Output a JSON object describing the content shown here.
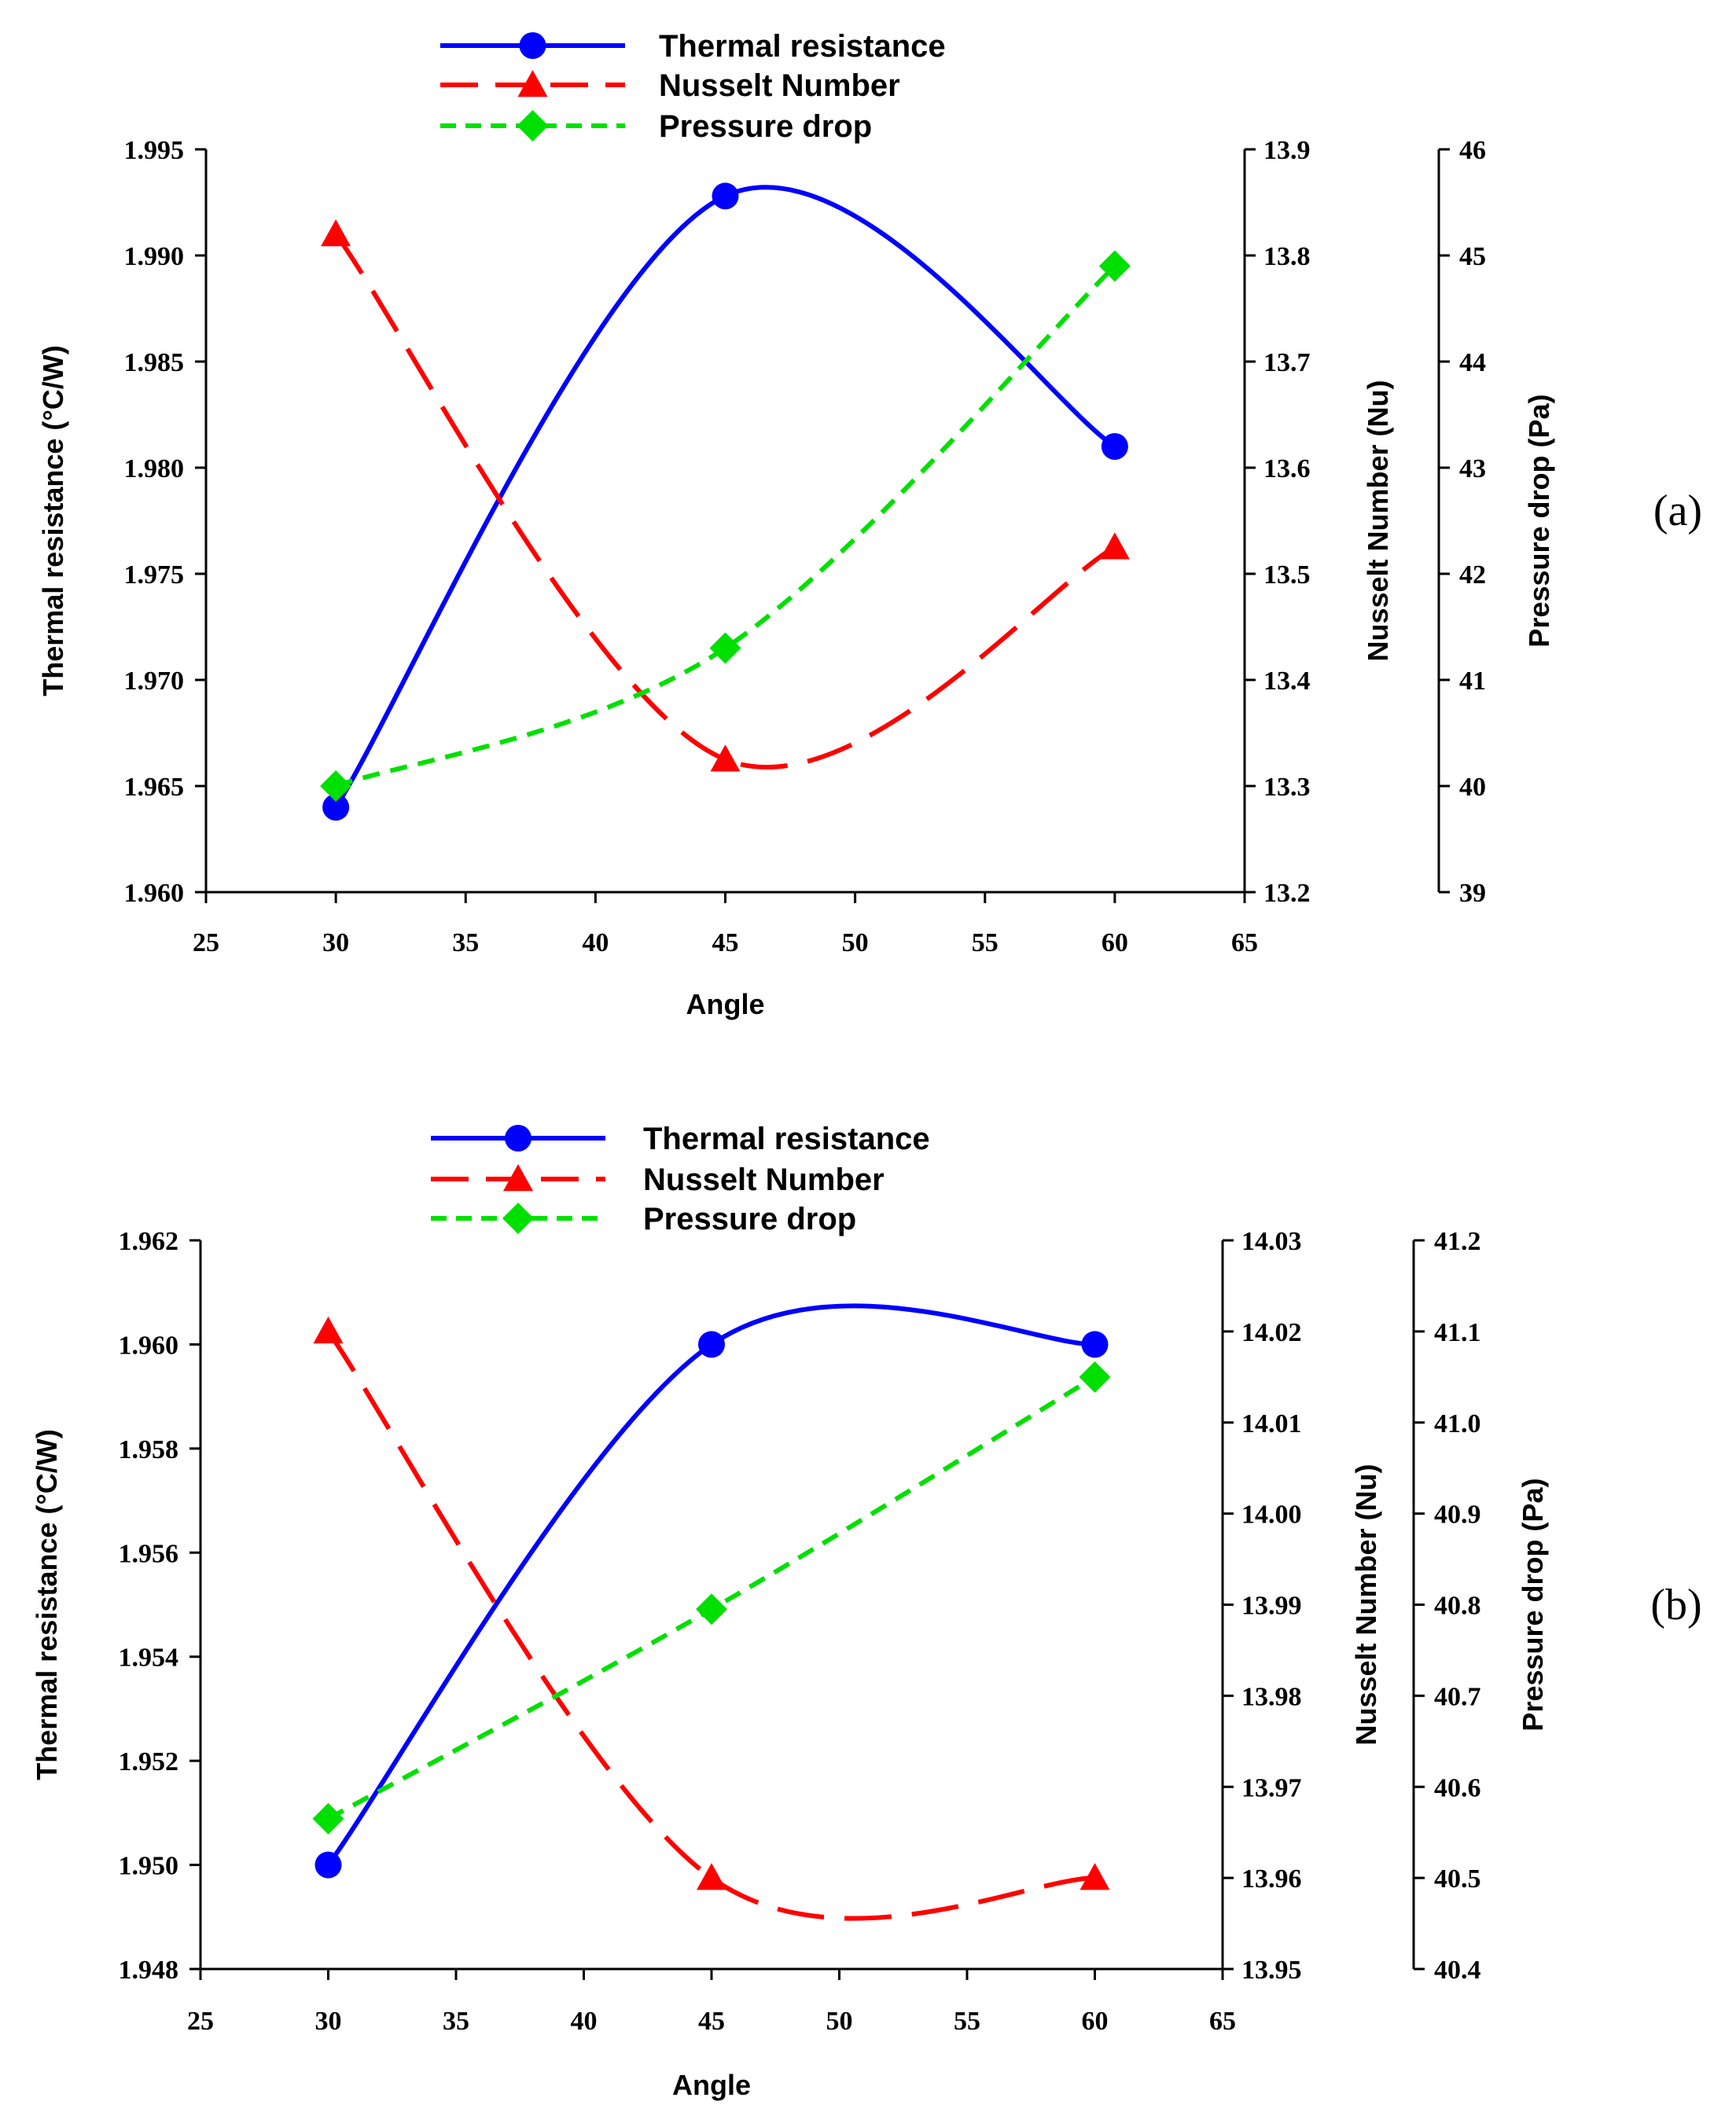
{
  "colors": {
    "thermal": "#0000ff",
    "nusselt": "#ff0000",
    "pressure": "#00e000",
    "axis": "#000000"
  },
  "legend": [
    {
      "label": "Thermal resistance",
      "series": "thermal",
      "marker": "circle",
      "dash": "solid"
    },
    {
      "label": "Nusselt Number",
      "series": "nusselt",
      "marker": "triangle",
      "dash": "long"
    },
    {
      "label": "Pressure drop",
      "series": "pressure",
      "marker": "diamond",
      "dash": "short"
    }
  ],
  "chart_data": [
    {
      "type": "line",
      "panel_label": "(a)",
      "xlabel": "Angle",
      "xlim": [
        25,
        65
      ],
      "xticks": [
        "25",
        "30",
        "35",
        "40",
        "45",
        "50",
        "55",
        "60",
        "65"
      ],
      "y_left": {
        "label": "Thermal resistance (°C/W)",
        "lim": [
          1.96,
          1.995
        ],
        "ticks": [
          "1.960",
          "1.965",
          "1.970",
          "1.975",
          "1.980",
          "1.985",
          "1.990",
          "1.995"
        ]
      },
      "y_right1": {
        "label": "Nusselt Number (Nu)",
        "lim": [
          13.2,
          13.9
        ],
        "ticks": [
          "13.2",
          "13.3",
          "13.4",
          "13.5",
          "13.6",
          "13.7",
          "13.8",
          "13.9"
        ]
      },
      "y_right2": {
        "label": "Pressure drop (Pa)",
        "lim": [
          39,
          46
        ],
        "ticks": [
          "39",
          "40",
          "41",
          "42",
          "43",
          "44",
          "45",
          "46"
        ]
      },
      "x": [
        30,
        45,
        60
      ],
      "series": [
        {
          "name": "Thermal resistance",
          "axis": "left",
          "values": [
            1.964,
            1.9928,
            1.981
          ]
        },
        {
          "name": "Nusselt Number",
          "axis": "right1",
          "values": [
            13.82,
            13.325,
            13.525
          ]
        },
        {
          "name": "Pressure drop",
          "axis": "right2",
          "values": [
            40.0,
            41.3,
            44.9
          ]
        }
      ]
    },
    {
      "type": "line",
      "panel_label": "(b)",
      "xlabel": "Angle",
      "xlim": [
        25,
        65
      ],
      "xticks": [
        "25",
        "30",
        "35",
        "40",
        "45",
        "50",
        "55",
        "60",
        "65"
      ],
      "y_left": {
        "label": "Thermal resistance (°C/W)",
        "lim": [
          1.948,
          1.962
        ],
        "ticks": [
          "1.948",
          "1.950",
          "1.952",
          "1.954",
          "1.956",
          "1.958",
          "1.960",
          "1.962"
        ]
      },
      "y_right1": {
        "label": "Nusselt Number (Nu)",
        "lim": [
          13.95,
          14.03
        ],
        "ticks": [
          "13.95",
          "13.96",
          "13.97",
          "13.98",
          "13.99",
          "14.00",
          "14.01",
          "14.02",
          "14.03"
        ]
      },
      "y_right2": {
        "label": "Pressure drop (Pa)",
        "lim": [
          40.4,
          41.2
        ],
        "ticks": [
          "40.4",
          "40.5",
          "40.6",
          "40.7",
          "40.8",
          "40.9",
          "41.0",
          "41.1",
          "41.2"
        ]
      },
      "x": [
        30,
        45,
        60
      ],
      "series": [
        {
          "name": "Thermal resistance",
          "axis": "left",
          "values": [
            1.95,
            1.96,
            1.96
          ]
        },
        {
          "name": "Nusselt Number",
          "axis": "right1",
          "values": [
            14.02,
            13.96,
            13.96
          ]
        },
        {
          "name": "Pressure drop",
          "axis": "right2",
          "values": [
            40.565,
            40.795,
            41.05
          ]
        }
      ]
    }
  ]
}
